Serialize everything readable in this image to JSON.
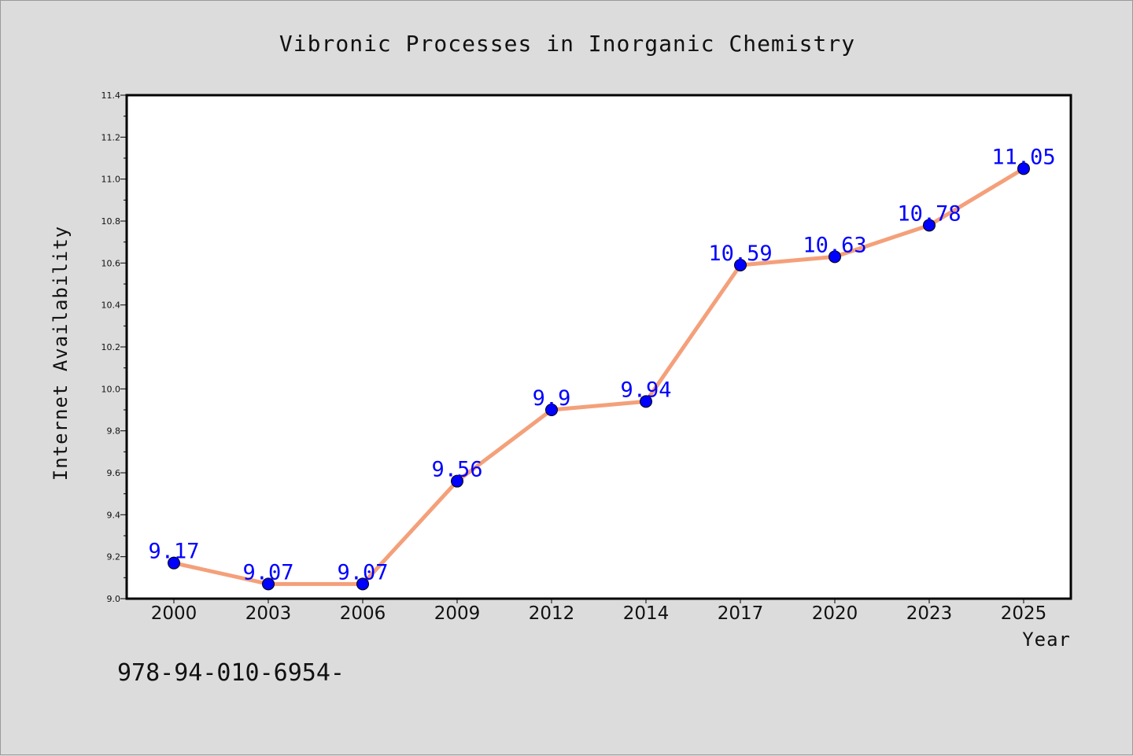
{
  "chart_data": {
    "type": "line",
    "title": "Vibronic Processes in Inorganic Chemistry",
    "xlabel": "Year",
    "ylabel": "Internet Availability",
    "categories": [
      "2000",
      "2003",
      "2006",
      "2009",
      "2012",
      "2014",
      "2017",
      "2020",
      "2023",
      "2025"
    ],
    "series": [
      {
        "values": [
          9.17,
          9.07,
          9.07,
          9.56,
          9.9,
          9.94,
          10.59,
          10.63,
          10.78,
          11.05
        ],
        "labels": [
          "9.17",
          "9.07",
          "9.07",
          "9.56",
          "9.9",
          "9.94",
          "10.59",
          "10.63",
          "10.78",
          "11.05"
        ],
        "line_color": "#f4a07a",
        "marker_color": "#0000ff"
      }
    ],
    "ylim": [
      9.0,
      11.4
    ],
    "yticks": [
      "9.0",
      "9.2",
      "9.4",
      "9.6",
      "9.8",
      "10.0",
      "10.2",
      "10.4",
      "10.6",
      "10.8",
      "11.0",
      "11.2",
      "11.4"
    ],
    "grid": false,
    "legend": "none"
  },
  "footer": {
    "text": "978-94-010-6954-"
  },
  "colors": {
    "background": "#dcdcdc",
    "plot_background": "#ffffff",
    "axis": "#000000"
  }
}
